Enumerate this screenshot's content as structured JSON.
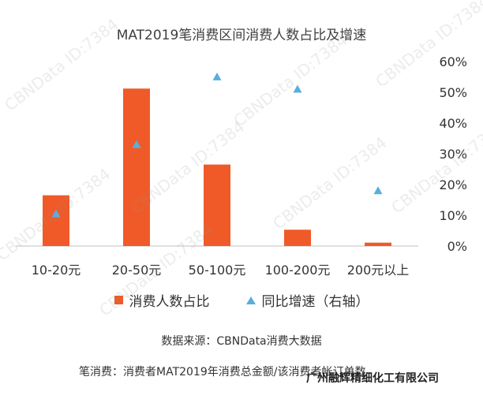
{
  "title": "MAT2019笔消费区间消费人数占比及增速",
  "chart_data": {
    "type": "bar",
    "categories": [
      "10-20元",
      "20-50元",
      "50-100元",
      "100-200元",
      "200元以上"
    ],
    "series": [
      {
        "name": "消费人数占比",
        "kind": "bar",
        "axis": "left",
        "values": [
          16.5,
          51.2,
          26.5,
          5.3,
          1.1
        ],
        "color": "#f05a28"
      },
      {
        "name": "同比增速（右轴）",
        "kind": "scatter",
        "axis": "right",
        "values": [
          10.5,
          33,
          55,
          51,
          18
        ],
        "color": "#5aaedc"
      }
    ],
    "y_right_ticks": [
      "0%",
      "10%",
      "20%",
      "30%",
      "40%",
      "50%",
      "60%"
    ],
    "y_right_lim": [
      0,
      60
    ],
    "y_left_lim": [
      0,
      60
    ],
    "grid": false,
    "legend_position": "bottom"
  },
  "legend": {
    "bar": "消费人数占比",
    "marker": "同比增速（右轴）"
  },
  "source": "数据来源：CBNData消费大数据",
  "note": "笔消费：消费者MAT2019年消费总金额/该消费者帐订单数",
  "company": "广州融辉精细化工有限公司",
  "watermark": "CBNData ID:7384"
}
